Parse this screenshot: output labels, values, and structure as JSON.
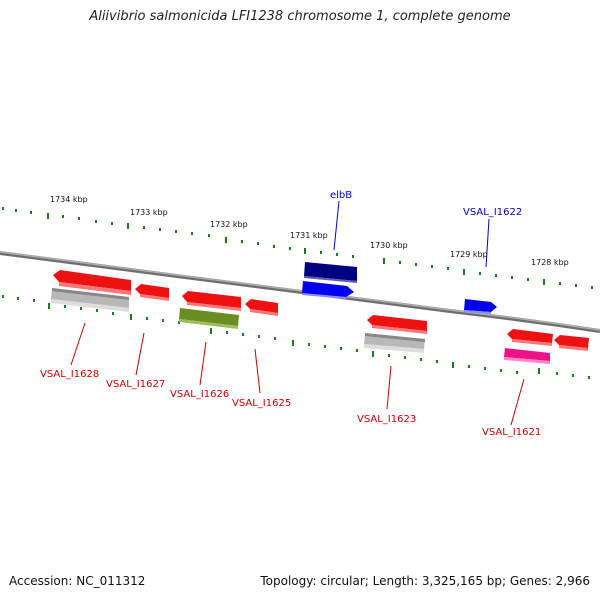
{
  "title": "Aliivibrio salmonicida LFI1238 chromosome 1, complete genome",
  "footer": {
    "accession": "Accession: NC_011312",
    "stats": "Topology: circular; Length: 3,325,165 bp; Genes: 2,966"
  },
  "colors": {
    "backbone": "#8a8a8a",
    "tick": "#1f7a1f",
    "forward_label": "#0000cc",
    "reverse_label": "#cc0000",
    "red": "#ee1111",
    "gray": "#b8b8b8",
    "olive": "#6b8e23",
    "navy": "#000080",
    "blue": "#0000ee",
    "magenta": "#ee1188"
  },
  "scale_ticks": [
    "1734 kbp",
    "1733 kbp",
    "1732 kbp",
    "1731 kbp",
    "1730 kbp",
    "1729 kbp",
    "1728 kbp"
  ],
  "gene_labels_top": [
    "elbB",
    "VSAL_I1622"
  ],
  "gene_labels_bottom": [
    "VSAL_I1628",
    "VSAL_I1627",
    "VSAL_I1626",
    "VSAL_I1625",
    "VSAL_I1623",
    "VSAL_I1621"
  ]
}
